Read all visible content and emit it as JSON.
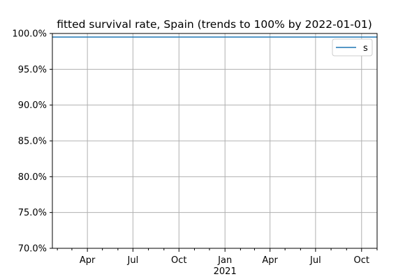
{
  "chart_data": {
    "type": "line",
    "title": "fitted survival rate, Spain (trends to 100% by 2022-01-01)",
    "xlabel": "",
    "ylabel": "",
    "x_axis_type": "date",
    "xlim": [
      "2020-01-22",
      "2021-11-01"
    ],
    "ylim": [
      70.0,
      100.0
    ],
    "grid": true,
    "legend": {
      "location": "upper right",
      "entries": [
        "s"
      ]
    },
    "y_ticks": [
      {
        "value": 70.0,
        "label": "70.0%"
      },
      {
        "value": 75.0,
        "label": "75.0%"
      },
      {
        "value": 80.0,
        "label": "80.0%"
      },
      {
        "value": 85.0,
        "label": "85.0%"
      },
      {
        "value": 90.0,
        "label": "90.0%"
      },
      {
        "value": 95.0,
        "label": "95.0%"
      },
      {
        "value": 100.0,
        "label": "100.0%"
      }
    ],
    "x_major_ticks": [
      {
        "value": "2020-04-01",
        "label": "Apr"
      },
      {
        "value": "2020-07-01",
        "label": "Jul"
      },
      {
        "value": "2020-10-01",
        "label": "Oct"
      },
      {
        "value": "2021-01-01",
        "label": "Jan"
      },
      {
        "value": "2021-04-01",
        "label": "Apr"
      },
      {
        "value": "2021-07-01",
        "label": "Jul"
      },
      {
        "value": "2021-10-01",
        "label": "Oct"
      }
    ],
    "x_minor_ticks": [
      "2020-02-01",
      "2020-03-01",
      "2020-05-01",
      "2020-06-01",
      "2020-08-01",
      "2020-09-01",
      "2020-11-01",
      "2020-12-01",
      "2021-02-01",
      "2021-03-01",
      "2021-05-01",
      "2021-06-01",
      "2021-08-01",
      "2021-09-01",
      "2021-11-01"
    ],
    "x_secondary_label": {
      "value": "2021-01-01",
      "label": "2021"
    },
    "series": [
      {
        "name": "s",
        "color": "#1f77b4",
        "points": [
          {
            "x": "2020-01-22",
            "y": 99.5
          },
          {
            "x": "2021-11-01",
            "y": 99.5
          }
        ]
      }
    ]
  }
}
